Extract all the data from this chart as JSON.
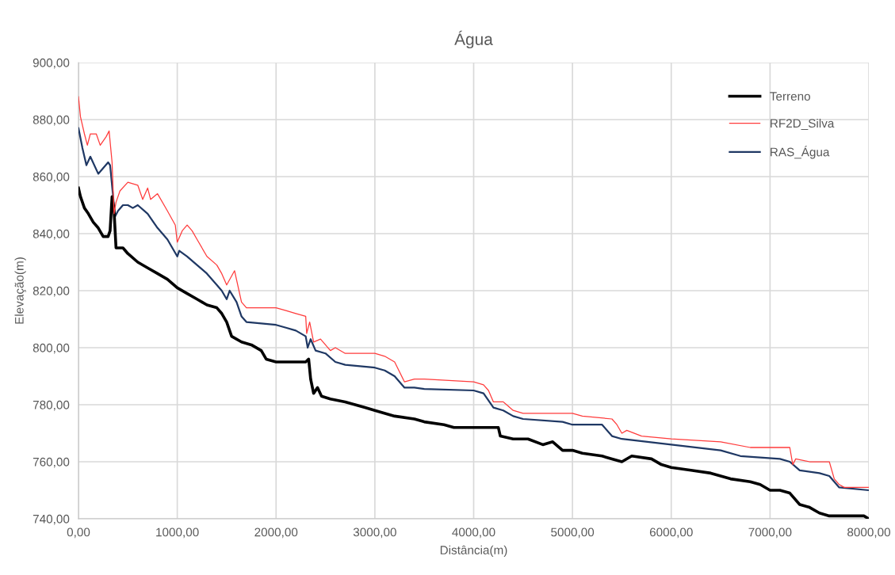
{
  "chart_data": {
    "type": "line",
    "title": "Água",
    "xlabel": "Distância(m)",
    "ylabel": "Elevação(m)",
    "xlim": [
      0,
      8000
    ],
    "ylim": [
      740,
      900
    ],
    "xticks": [
      {
        "value": 0,
        "label": "0,00"
      },
      {
        "value": 1000,
        "label": "1000,00"
      },
      {
        "value": 2000,
        "label": "2000,00"
      },
      {
        "value": 3000,
        "label": "3000,00"
      },
      {
        "value": 4000,
        "label": "4000,00"
      },
      {
        "value": 5000,
        "label": "5000,00"
      },
      {
        "value": 6000,
        "label": "6000,00"
      },
      {
        "value": 7000,
        "label": "7000,00"
      },
      {
        "value": 8000,
        "label": "8000,00"
      }
    ],
    "yticks": [
      {
        "value": 740,
        "label": "740,00"
      },
      {
        "value": 760,
        "label": "760,00"
      },
      {
        "value": 780,
        "label": "780,00"
      },
      {
        "value": 800,
        "label": "800,00"
      },
      {
        "value": 820,
        "label": "820,00"
      },
      {
        "value": 840,
        "label": "840,00"
      },
      {
        "value": 860,
        "label": "860,00"
      },
      {
        "value": 880,
        "label": "880,00"
      },
      {
        "value": 900,
        "label": "900,00"
      }
    ],
    "grid": true,
    "legend": "top right",
    "marker": "none",
    "line_style": "solid",
    "series": [
      {
        "name": "Terreno",
        "color": "#000000",
        "x": [
          0,
          20,
          60,
          100,
          150,
          200,
          250,
          300,
          320,
          340,
          360,
          380,
          450,
          500,
          600,
          700,
          800,
          900,
          1000,
          1100,
          1200,
          1300,
          1400,
          1450,
          1500,
          1550,
          1650,
          1750,
          1850,
          1900,
          2000,
          2100,
          2300,
          2330,
          2350,
          2380,
          2420,
          2460,
          2550,
          2700,
          2900,
          3000,
          3200,
          3400,
          3500,
          3700,
          3800,
          4000,
          4250,
          4270,
          4400,
          4550,
          4700,
          4800,
          4900,
          5000,
          5100,
          5300,
          5400,
          5500,
          5600,
          5800,
          5900,
          6000,
          6200,
          6400,
          6600,
          6800,
          6900,
          7000,
          7100,
          7200,
          7300,
          7400,
          7500,
          7600,
          7700,
          7950,
          8000
        ],
        "values": [
          856,
          853,
          849,
          847,
          844,
          842,
          839,
          839,
          841,
          853,
          848,
          835,
          835,
          833,
          830,
          828,
          826,
          824,
          821,
          819,
          817,
          815,
          814,
          812,
          809,
          804,
          802,
          801,
          799,
          796,
          795,
          795,
          795,
          796,
          789,
          784,
          786,
          783,
          782,
          781,
          779,
          778,
          776,
          775,
          774,
          773,
          772,
          772,
          772,
          769,
          768,
          768,
          766,
          767,
          764,
          764,
          763,
          762,
          761,
          760,
          762,
          761,
          759,
          758,
          757,
          756,
          754,
          753,
          752,
          750,
          750,
          749,
          745,
          744,
          742,
          741,
          741,
          741,
          740
        ]
      },
      {
        "name": "RF2D_Silva",
        "color": "#ff3b3b",
        "x": [
          0,
          20,
          60,
          90,
          120,
          180,
          220,
          280,
          310,
          340,
          360,
          380,
          420,
          500,
          600,
          650,
          700,
          730,
          800,
          900,
          980,
          1000,
          1050,
          1100,
          1150,
          1200,
          1300,
          1400,
          1450,
          1500,
          1580,
          1650,
          1700,
          1800,
          2000,
          2100,
          2200,
          2300,
          2310,
          2340,
          2380,
          2450,
          2550,
          2600,
          2700,
          3000,
          3100,
          3200,
          3300,
          3400,
          3500,
          4000,
          4100,
          4150,
          4200,
          4300,
          4400,
          4500,
          5000,
          5100,
          5400,
          5450,
          5500,
          5550,
          5700,
          6000,
          6500,
          6800,
          7200,
          7230,
          7260,
          7400,
          7600,
          7650,
          7700,
          7750,
          8000
        ],
        "values": [
          888,
          881,
          875,
          871,
          875,
          875,
          871,
          874,
          876,
          865,
          847,
          851,
          855,
          858,
          857,
          852,
          856,
          852,
          854,
          848,
          843,
          837,
          841,
          843,
          841,
          838,
          832,
          829,
          826,
          822,
          827,
          816,
          814,
          814,
          814,
          813,
          812,
          811,
          805,
          809,
          802,
          803,
          799,
          800,
          798,
          798,
          797,
          795,
          788,
          789,
          789,
          788,
          787,
          785,
          781,
          781,
          778,
          777,
          777,
          776,
          775,
          773,
          770,
          771,
          769,
          768,
          767,
          765,
          765,
          759,
          761,
          760,
          760,
          754,
          752,
          751,
          751
        ]
      },
      {
        "name": "RAS_Água",
        "color": "#1f3864",
        "x": [
          0,
          40,
          80,
          120,
          200,
          300,
          320,
          370,
          400,
          450,
          500,
          550,
          600,
          700,
          800,
          900,
          1000,
          1020,
          1100,
          1200,
          1300,
          1400,
          1450,
          1500,
          1530,
          1600,
          1650,
          1700,
          2000,
          2100,
          2200,
          2300,
          2320,
          2350,
          2400,
          2500,
          2600,
          2700,
          3000,
          3100,
          3200,
          3300,
          3400,
          3500,
          4000,
          4100,
          4200,
          4300,
          4400,
          4500,
          4900,
          5000,
          5300,
          5400,
          5500,
          6000,
          6500,
          6700,
          7100,
          7200,
          7300,
          7500,
          7600,
          7700,
          8000
        ],
        "values": [
          877,
          870,
          864,
          867,
          861,
          865,
          864,
          846,
          848,
          850,
          850,
          849,
          850,
          847,
          842,
          838,
          832,
          834,
          832,
          829,
          826,
          822,
          820,
          817,
          820,
          816,
          811,
          809,
          808,
          807,
          806,
          804,
          800,
          803,
          799,
          798,
          795,
          794,
          793,
          792,
          790,
          786,
          786,
          785.5,
          785,
          784,
          779,
          778,
          776,
          775,
          774,
          773,
          773,
          769,
          768,
          766,
          764,
          762,
          761,
          760,
          757,
          756,
          755,
          751,
          750
        ]
      }
    ]
  }
}
